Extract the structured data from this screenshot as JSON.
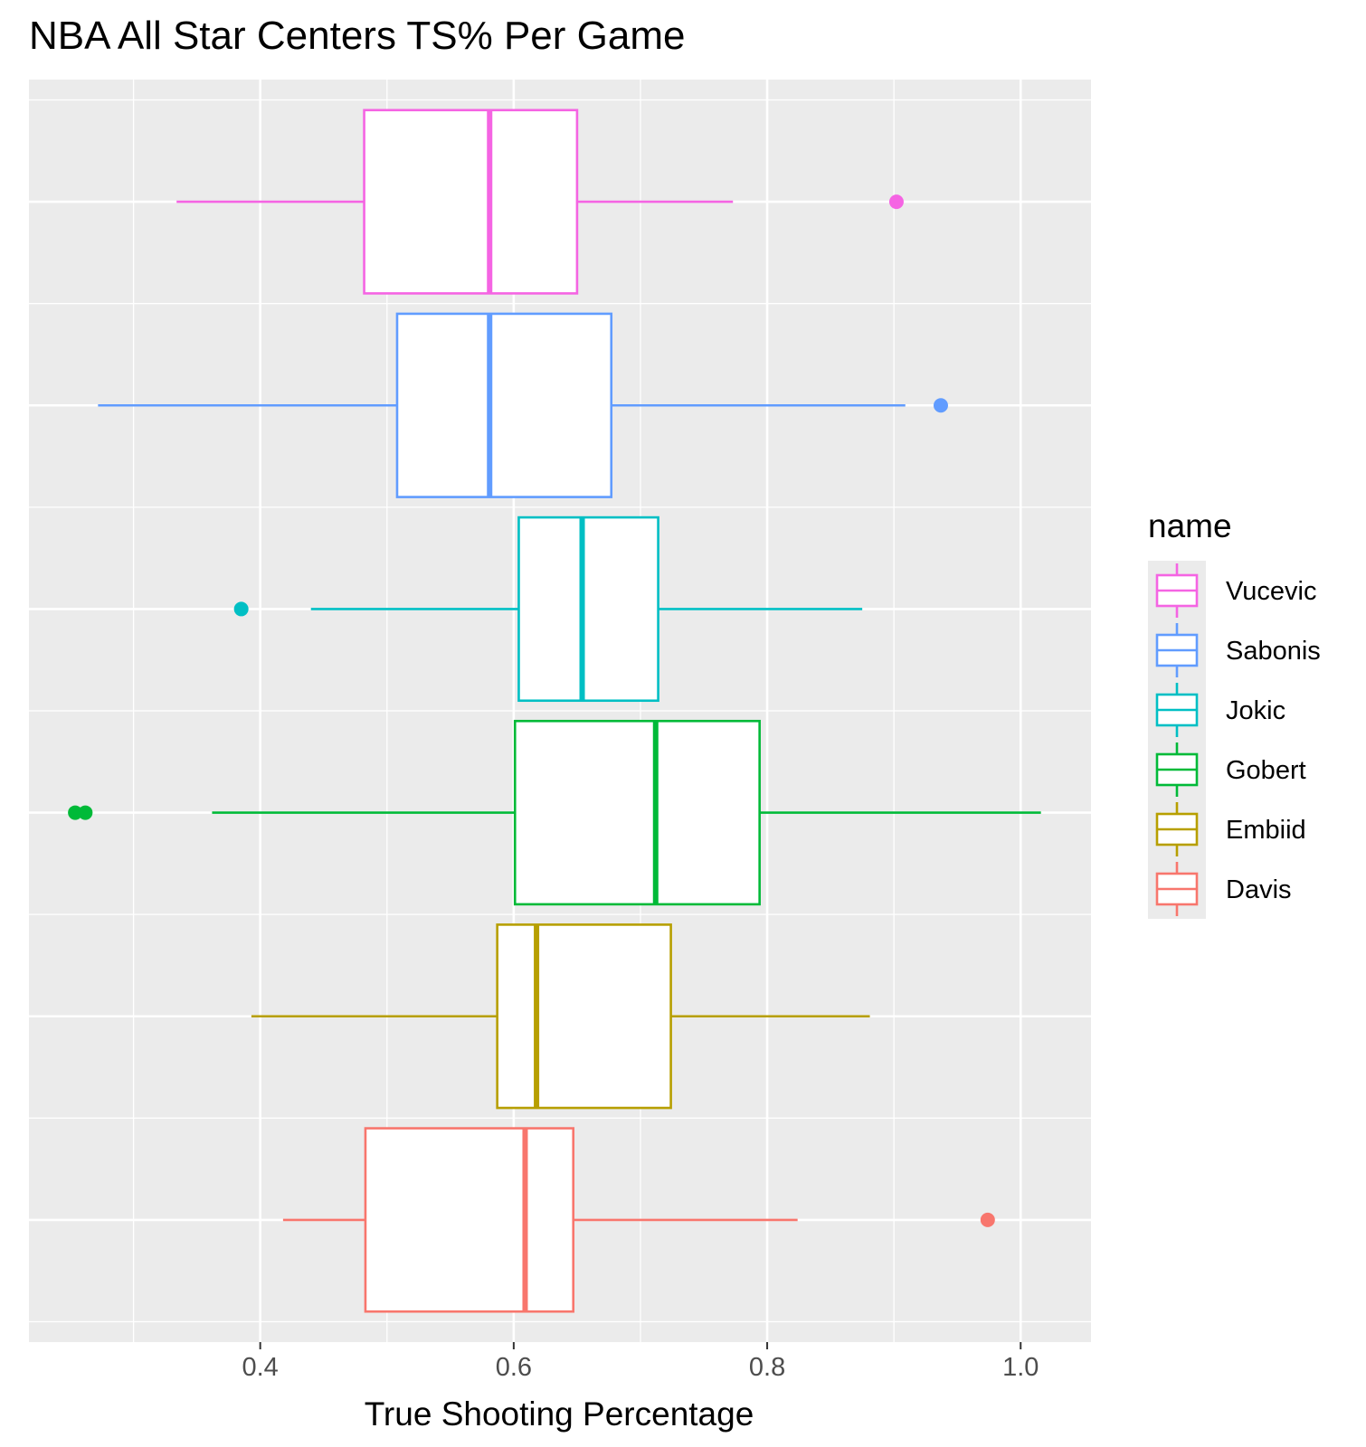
{
  "chart_data": {
    "type": "boxplot",
    "orientation": "horizontal",
    "title": "NBA All Star Centers TS% Per Game",
    "xlabel": "True Shooting Percentage",
    "ylabel": "",
    "xlim": [
      0.2175,
      1.0555
    ],
    "x_ticks": [
      0.4,
      0.6,
      0.8,
      1.0
    ],
    "x_tick_labels": [
      "0.4",
      "0.6",
      "0.8",
      "1.0"
    ],
    "x_minor_ticks": [
      0.3,
      0.5,
      0.7,
      0.9
    ],
    "y_tick_labels_visible": false,
    "grid": true,
    "legend": {
      "title": "name",
      "position": "right",
      "entries": [
        "Vucevic",
        "Sabonis",
        "Jokic",
        "Gobert",
        "Embiid",
        "Davis"
      ]
    },
    "series": [
      {
        "name": "Vucevic",
        "color": "#F564E3",
        "whisker_low": 0.334,
        "q1": 0.482,
        "median": 0.581,
        "q3": 0.65,
        "whisker_high": 0.773,
        "outliers": [
          0.902
        ]
      },
      {
        "name": "Sabonis",
        "color": "#619CFF",
        "whisker_low": 0.272,
        "q1": 0.508,
        "median": 0.581,
        "q3": 0.677,
        "whisker_high": 0.909,
        "outliers": [
          0.937
        ]
      },
      {
        "name": "Jokic",
        "color": "#00BFC4",
        "whisker_low": 0.44,
        "q1": 0.604,
        "median": 0.654,
        "q3": 0.714,
        "whisker_high": 0.875,
        "outliers": [
          0.385
        ]
      },
      {
        "name": "Gobert",
        "color": "#00BA38",
        "whisker_low": 0.362,
        "q1": 0.601,
        "median": 0.712,
        "q3": 0.794,
        "whisker_high": 1.016,
        "outliers": [
          0.254,
          0.262
        ]
      },
      {
        "name": "Embiid",
        "color": "#B79F00",
        "whisker_low": 0.393,
        "q1": 0.587,
        "median": 0.618,
        "q3": 0.724,
        "whisker_high": 0.881,
        "outliers": []
      },
      {
        "name": "Davis",
        "color": "#F8766D",
        "whisker_low": 0.418,
        "q1": 0.483,
        "median": 0.609,
        "q3": 0.647,
        "whisker_high": 0.824,
        "outliers": [
          0.974
        ]
      }
    ],
    "colors": {
      "panel_background": "#EBEBEB",
      "grid_major": "#FFFFFF",
      "box_fill": "#FFFFFF",
      "tick_label": "#4D4D4D",
      "axis_tick": "#333333"
    }
  }
}
